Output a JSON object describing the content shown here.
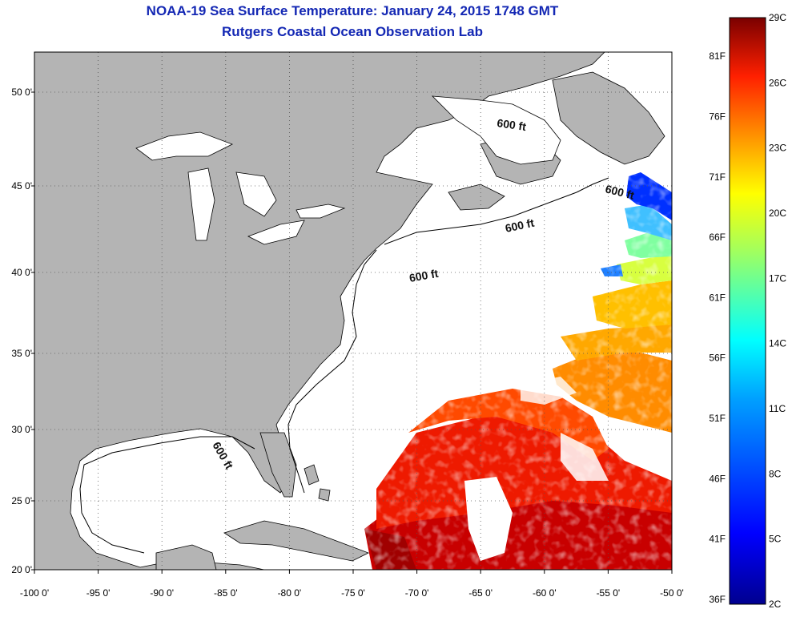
{
  "title": "NOAA-19 Sea Surface Temperature:  January 24, 2015 1748 GMT",
  "subtitle": "Rutgers Coastal Ocean Observation Lab",
  "map": {
    "lon_range": [
      -100,
      -50
    ],
    "lat_range": [
      20,
      52.5
    ],
    "x_ticks": [
      "-100 0'",
      "-95 0'",
      "-90 0'",
      "-85 0'",
      "-80 0'",
      "-75 0'",
      "-70 0'",
      "-65 0'",
      "-60 0'",
      "-55 0'",
      "-50 0'"
    ],
    "y_ticks": [
      "50 0'",
      "45 0'",
      "40 0'",
      "35 0'",
      "30 0'",
      "25 0'",
      "20 0'"
    ],
    "contour_labels": [
      "600 ft",
      "600 ft",
      "600 ft",
      "600 ft",
      "600 ft"
    ],
    "land_color": "#b4b4b4",
    "no_data_color": "#ffffff"
  },
  "colorbar": {
    "fahrenheit_labels": [
      "81F",
      "76F",
      "71F",
      "66F",
      "61F",
      "56F",
      "51F",
      "46F",
      "41F",
      "36F"
    ],
    "celsius_labels": [
      "29C",
      "26C",
      "23C",
      "20C",
      "17C",
      "14C",
      "11C",
      "8C",
      "5C",
      "2C"
    ],
    "colors": [
      "#00008f",
      "#0000ff",
      "#0080ff",
      "#00ffff",
      "#80ff80",
      "#ffff00",
      "#ff8000",
      "#ff0000",
      "#800000"
    ]
  }
}
